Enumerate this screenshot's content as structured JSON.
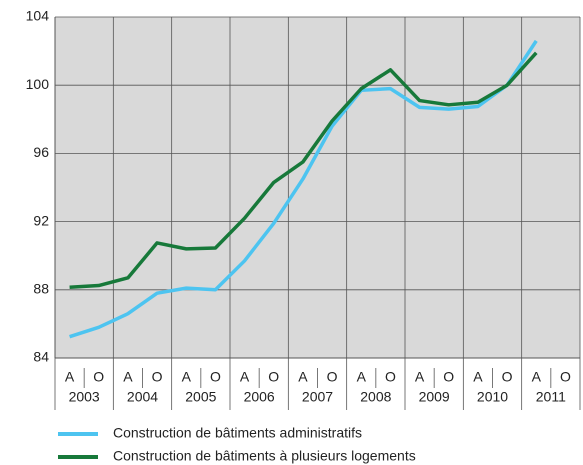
{
  "chart_data": {
    "type": "line",
    "categories": [
      "A",
      "O",
      "A",
      "O",
      "A",
      "O",
      "A",
      "O",
      "A",
      "O",
      "A",
      "O",
      "A",
      "O",
      "A",
      "O",
      "A",
      "O"
    ],
    "years": [
      "2003",
      "2004",
      "2005",
      "2006",
      "2007",
      "2008",
      "2009",
      "2010",
      "2011"
    ],
    "series": [
      {
        "name": "Construction de bâtiments administratifs",
        "color": "#4dc4f0",
        "values": [
          85.25,
          85.8,
          86.6,
          87.8,
          88.1,
          88.0,
          89.7,
          91.9,
          94.5,
          97.6,
          99.7,
          99.8,
          98.7,
          98.6,
          98.75,
          100.0,
          102.6,
          null
        ]
      },
      {
        "name": "Construction de bâtiments à plusieurs logements",
        "color": "#17793a",
        "values": [
          88.15,
          88.25,
          88.7,
          90.75,
          90.4,
          90.45,
          92.2,
          94.3,
          95.5,
          97.9,
          99.8,
          100.9,
          99.1,
          98.85,
          99.0,
          100.0,
          101.9,
          null
        ]
      }
    ],
    "ylim": [
      84,
      104
    ],
    "yticks": [
      84,
      88,
      92,
      96,
      100,
      104
    ],
    "grid": true
  }
}
